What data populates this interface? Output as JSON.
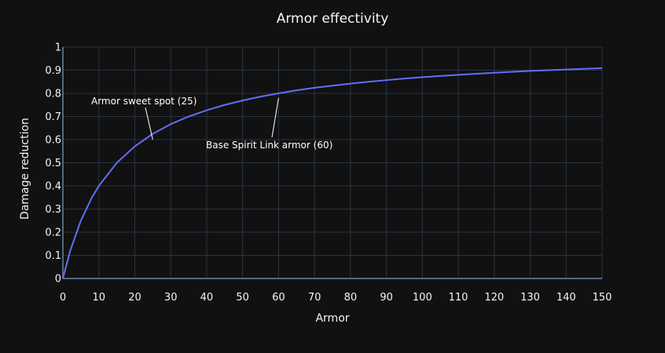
{
  "chart_data": {
    "type": "line",
    "title": "Armor effectivity",
    "xlabel": "Armor",
    "ylabel": "Damage reduction",
    "xlim": [
      0,
      150
    ],
    "ylim": [
      0,
      1
    ],
    "x_ticks": [
      0,
      10,
      20,
      30,
      40,
      50,
      60,
      70,
      80,
      90,
      100,
      110,
      120,
      130,
      140,
      150
    ],
    "y_ticks": [
      0,
      0.1,
      0.2,
      0.3,
      0.4,
      0.5,
      0.6,
      0.7,
      0.8,
      0.9,
      1
    ],
    "x_tick_labels": [
      "0",
      "10",
      "20",
      "30",
      "40",
      "50",
      "60",
      "70",
      "80",
      "90",
      "100",
      "110",
      "120",
      "130",
      "140",
      "150"
    ],
    "y_tick_labels": [
      "0",
      "0.1",
      "0.2",
      "0.3",
      "0.4",
      "0.5",
      "0.6",
      "0.7",
      "0.8",
      "0.9",
      "1"
    ],
    "grid": true,
    "series": [
      {
        "color": "#636efa",
        "x": [
          0,
          2,
          5,
          8,
          10,
          15,
          20,
          25,
          30,
          35,
          40,
          45,
          50,
          55,
          60,
          65,
          70,
          75,
          80,
          85,
          90,
          95,
          100,
          110,
          120,
          130,
          140,
          150
        ],
        "y": [
          0,
          0.118,
          0.25,
          0.348,
          0.4,
          0.5,
          0.571,
          0.625,
          0.667,
          0.7,
          0.727,
          0.75,
          0.769,
          0.786,
          0.8,
          0.813,
          0.824,
          0.833,
          0.842,
          0.85,
          0.857,
          0.864,
          0.87,
          0.88,
          0.889,
          0.897,
          0.903,
          0.909
        ]
      }
    ],
    "annotations": [
      {
        "text": "Armor sweet spot (25)",
        "x": 25,
        "y": 0.6
      },
      {
        "text": "Base Spirit Link armor (60)",
        "x": 60,
        "y": 0.78
      }
    ]
  },
  "colors": {
    "background": "#111111",
    "grid": "#283442",
    "zeroline": "#506784",
    "line": "#636efa",
    "text": "#f2f5fa"
  }
}
